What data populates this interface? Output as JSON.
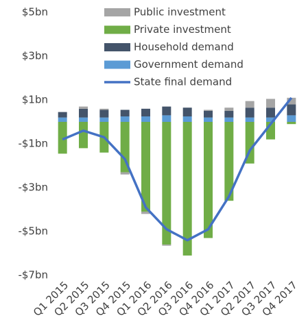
{
  "chart_data": {
    "type": "stacked-bar-line",
    "categories": [
      "Q1 2015",
      "Q2 2015",
      "Q3 2015",
      "Q4 2015",
      "Q1 2016",
      "Q2 2016",
      "Q3 2016",
      "Q4 2016",
      "Q1 2017",
      "Q2 2017",
      "Q3 2017",
      "Q4 2017"
    ],
    "series": [
      {
        "name": "Public investment",
        "color": "#a5a5a5",
        "kind": "bar",
        "values": [
          0,
          0.1,
          0.05,
          -0.1,
          -0.1,
          -0.05,
          0,
          0.05,
          0.15,
          0.3,
          0.4,
          0.3
        ]
      },
      {
        "name": "Private investment",
        "color": "#70ad47",
        "kind": "bar",
        "values": [
          -1.45,
          -1.2,
          -1.4,
          -2.3,
          -4.1,
          -5.6,
          -6.1,
          -5.3,
          -3.6,
          -1.9,
          -0.8,
          -0.1
        ]
      },
      {
        "name": "Household demand",
        "color": "#44546a",
        "kind": "bar",
        "values": [
          0.25,
          0.4,
          0.35,
          0.3,
          0.35,
          0.4,
          0.4,
          0.3,
          0.3,
          0.45,
          0.45,
          0.5
        ]
      },
      {
        "name": "Government demand",
        "color": "#5b9bd5",
        "kind": "bar",
        "values": [
          0.2,
          0.2,
          0.2,
          0.25,
          0.25,
          0.3,
          0.25,
          0.2,
          0.2,
          0.2,
          0.2,
          0.3
        ]
      },
      {
        "name": "State final demand",
        "color": "#4472c4",
        "kind": "line",
        "values": [
          -0.8,
          -0.4,
          -0.7,
          -1.7,
          -3.9,
          -4.9,
          -5.4,
          -4.9,
          -3.4,
          -1.3,
          -0.1,
          1.1
        ]
      }
    ],
    "ylim": [
      -7,
      5
    ],
    "yticks": [
      {
        "value": 5,
        "label": "$5bn"
      },
      {
        "value": 3,
        "label": "$3bn"
      },
      {
        "value": 1,
        "label": "$1bn"
      },
      {
        "value": -1,
        "label": "-$1bn"
      },
      {
        "value": -3,
        "label": "-$3bn"
      },
      {
        "value": -5,
        "label": "-$5bn"
      },
      {
        "value": -7,
        "label": "-$7bn"
      }
    ],
    "legend": "top-left"
  }
}
